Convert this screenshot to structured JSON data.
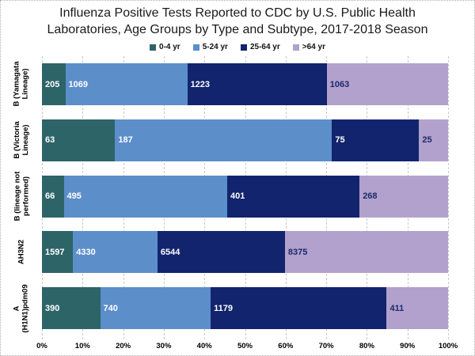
{
  "chart_data": {
    "type": "bar",
    "variant": "100-percent-stacked-horizontal",
    "title": "Influenza Positive Tests Reported to CDC by U.S. Public Health Laboratories, Age Groups by Type and Subtype, 2017-2018 Season",
    "title_lines": [
      "Influenza Positive Tests Reported to CDC by U.S. Public Health",
      "Laboratories, Age Groups by Type and Subtype, 2017-2018 Season"
    ],
    "categories": [
      {
        "label": "B (Yamagata Lineage)",
        "lines": [
          "B (Yamagata",
          "Lineage)"
        ]
      },
      {
        "label": "B (Victoria Lineage)",
        "lines": [
          "B (Victoria",
          "Lineage)"
        ]
      },
      {
        "label": "B (lineage not performed)",
        "lines": [
          "B (lineage not",
          "performed)"
        ]
      },
      {
        "label": "AH3N2",
        "lines": [
          "AH3N2"
        ]
      },
      {
        "label": "A (H1N1)pdm09",
        "lines": [
          "A",
          "(H1N1)pdm09"
        ]
      }
    ],
    "series": [
      {
        "name": "0-4 yr",
        "color": "#2D6468",
        "label_color": "#FFFFFF",
        "values": [
          205,
          63,
          66,
          1597,
          390
        ]
      },
      {
        "name": "5-24 yr",
        "color": "#5C8ECA",
        "label_color": "#FFFFFF",
        "values": [
          1069,
          187,
          495,
          4330,
          740
        ]
      },
      {
        "name": "25-64 yr",
        "color": "#12246D",
        "label_color": "#FFFFFF",
        "values": [
          1223,
          75,
          401,
          6544,
          1179
        ]
      },
      {
        "name": ">64 yr",
        "color": "#B2A1CC",
        "label_color": "#1B2A6B",
        "values": [
          1063,
          25,
          268,
          8375,
          411
        ]
      }
    ],
    "x_ticks": [
      "0%",
      "10%",
      "20%",
      "30%",
      "40%",
      "50%",
      "60%",
      "70%",
      "80%",
      "90%",
      "100%"
    ],
    "xlim": [
      0,
      100
    ],
    "legend_position": "top",
    "grid": "vertical-dashed"
  },
  "colors": {
    "grid": "#C9C9C9",
    "canvas_border": "#B0B0B0",
    "title_text": "#1A1A1A",
    "axis_text": "#000000",
    "background": "#FFFFFF"
  }
}
